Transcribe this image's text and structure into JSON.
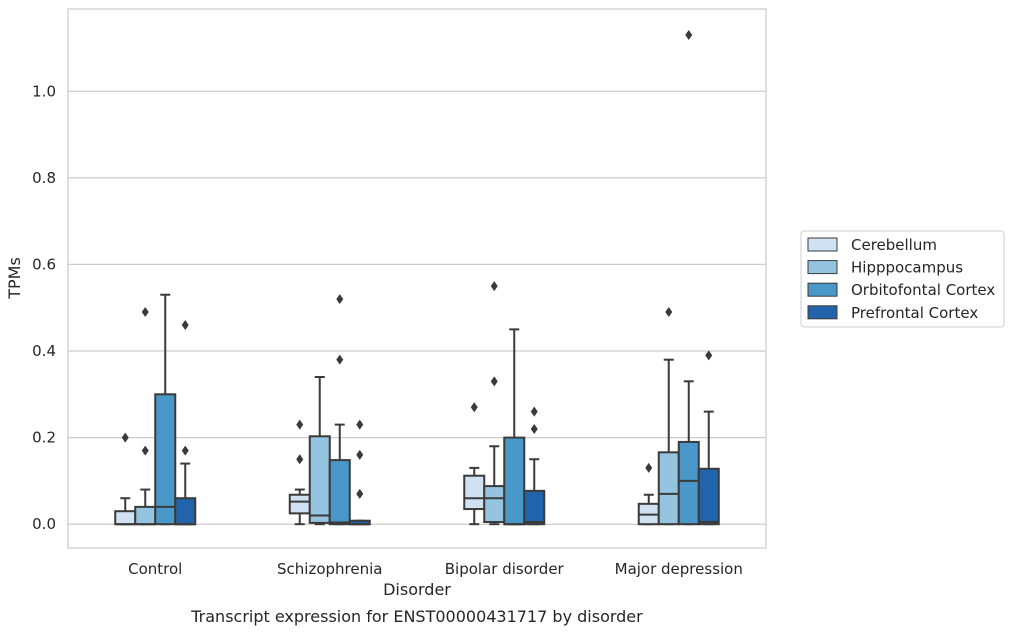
{
  "chart_data": {
    "type": "box",
    "title": "",
    "caption": "Transcript expression for ENST00000431717 by disorder",
    "xlabel": "Disorder",
    "ylabel": "TPMs",
    "ylim": [
      -0.055,
      1.19
    ],
    "yticks": [
      0.0,
      0.2,
      0.4,
      0.6,
      0.8,
      1.0
    ],
    "ytick_labels": [
      "0.0",
      "0.2",
      "0.4",
      "0.6",
      "0.8",
      "1.0"
    ],
    "grid": "horizontal",
    "legend_position": "right",
    "categories": [
      "Control",
      "Schizophrenia",
      "Bipolar disorder",
      "Major depression"
    ],
    "series": [
      {
        "name": "Cerebellum",
        "color": "#d0e1f2",
        "boxes": [
          {
            "whislo": 0.0,
            "q1": 0.0,
            "med": 0.0,
            "q3": 0.03,
            "whishi": 0.06,
            "fliers": [
              0.2
            ]
          },
          {
            "whislo": 0.0,
            "q1": 0.025,
            "med": 0.052,
            "q3": 0.068,
            "whishi": 0.08,
            "fliers": [
              0.15,
              0.23
            ]
          },
          {
            "whislo": 0.0,
            "q1": 0.035,
            "med": 0.06,
            "q3": 0.112,
            "whishi": 0.13,
            "fliers": [
              0.27
            ]
          },
          {
            "whislo": 0.0,
            "q1": 0.0,
            "med": 0.022,
            "q3": 0.047,
            "whishi": 0.068,
            "fliers": [
              0.13
            ]
          }
        ]
      },
      {
        "name": "Hipppocampus",
        "color": "#94c4df",
        "boxes": [
          {
            "whislo": 0.0,
            "q1": 0.0,
            "med": 0.0,
            "q3": 0.04,
            "whishi": 0.08,
            "fliers": [
              0.17,
              0.49
            ]
          },
          {
            "whislo": 0.0,
            "q1": 0.003,
            "med": 0.02,
            "q3": 0.203,
            "whishi": 0.34,
            "fliers": []
          },
          {
            "whislo": 0.0,
            "q1": 0.005,
            "med": 0.06,
            "q3": 0.088,
            "whishi": 0.18,
            "fliers": [
              0.33,
              0.55
            ]
          },
          {
            "whislo": 0.0,
            "q1": 0.0,
            "med": 0.07,
            "q3": 0.166,
            "whishi": 0.38,
            "fliers": [
              0.49
            ]
          }
        ]
      },
      {
        "name": "Orbitofontal Cortex",
        "color": "#4a98c9",
        "boxes": [
          {
            "whislo": 0.0,
            "q1": 0.0,
            "med": 0.04,
            "q3": 0.3,
            "whishi": 0.53,
            "fliers": []
          },
          {
            "whislo": 0.0,
            "q1": 0.0,
            "med": 0.004,
            "q3": 0.148,
            "whishi": 0.23,
            "fliers": [
              0.38,
              0.52
            ]
          },
          {
            "whislo": 0.0,
            "q1": 0.0,
            "med": 0.0,
            "q3": 0.2,
            "whishi": 0.45,
            "fliers": []
          },
          {
            "whislo": 0.0,
            "q1": 0.0,
            "med": 0.1,
            "q3": 0.19,
            "whishi": 0.33,
            "fliers": [
              1.13
            ]
          }
        ]
      },
      {
        "name": "Prefrontal Cortex",
        "color": "#2164ab",
        "boxes": [
          {
            "whislo": 0.0,
            "q1": 0.0,
            "med": 0.0,
            "q3": 0.06,
            "whishi": 0.14,
            "fliers": [
              0.17,
              0.46
            ]
          },
          {
            "whislo": 0.0,
            "q1": 0.0,
            "med": 0.0,
            "q3": 0.008,
            "whishi": 0.008,
            "fliers": [
              0.07,
              0.16,
              0.23
            ]
          },
          {
            "whislo": 0.0,
            "q1": 0.0,
            "med": 0.005,
            "q3": 0.077,
            "whishi": 0.15,
            "fliers": [
              0.22,
              0.26
            ]
          },
          {
            "whislo": 0.0,
            "q1": 0.0,
            "med": 0.005,
            "q3": 0.128,
            "whishi": 0.26,
            "fliers": [
              0.39
            ]
          }
        ]
      }
    ]
  }
}
